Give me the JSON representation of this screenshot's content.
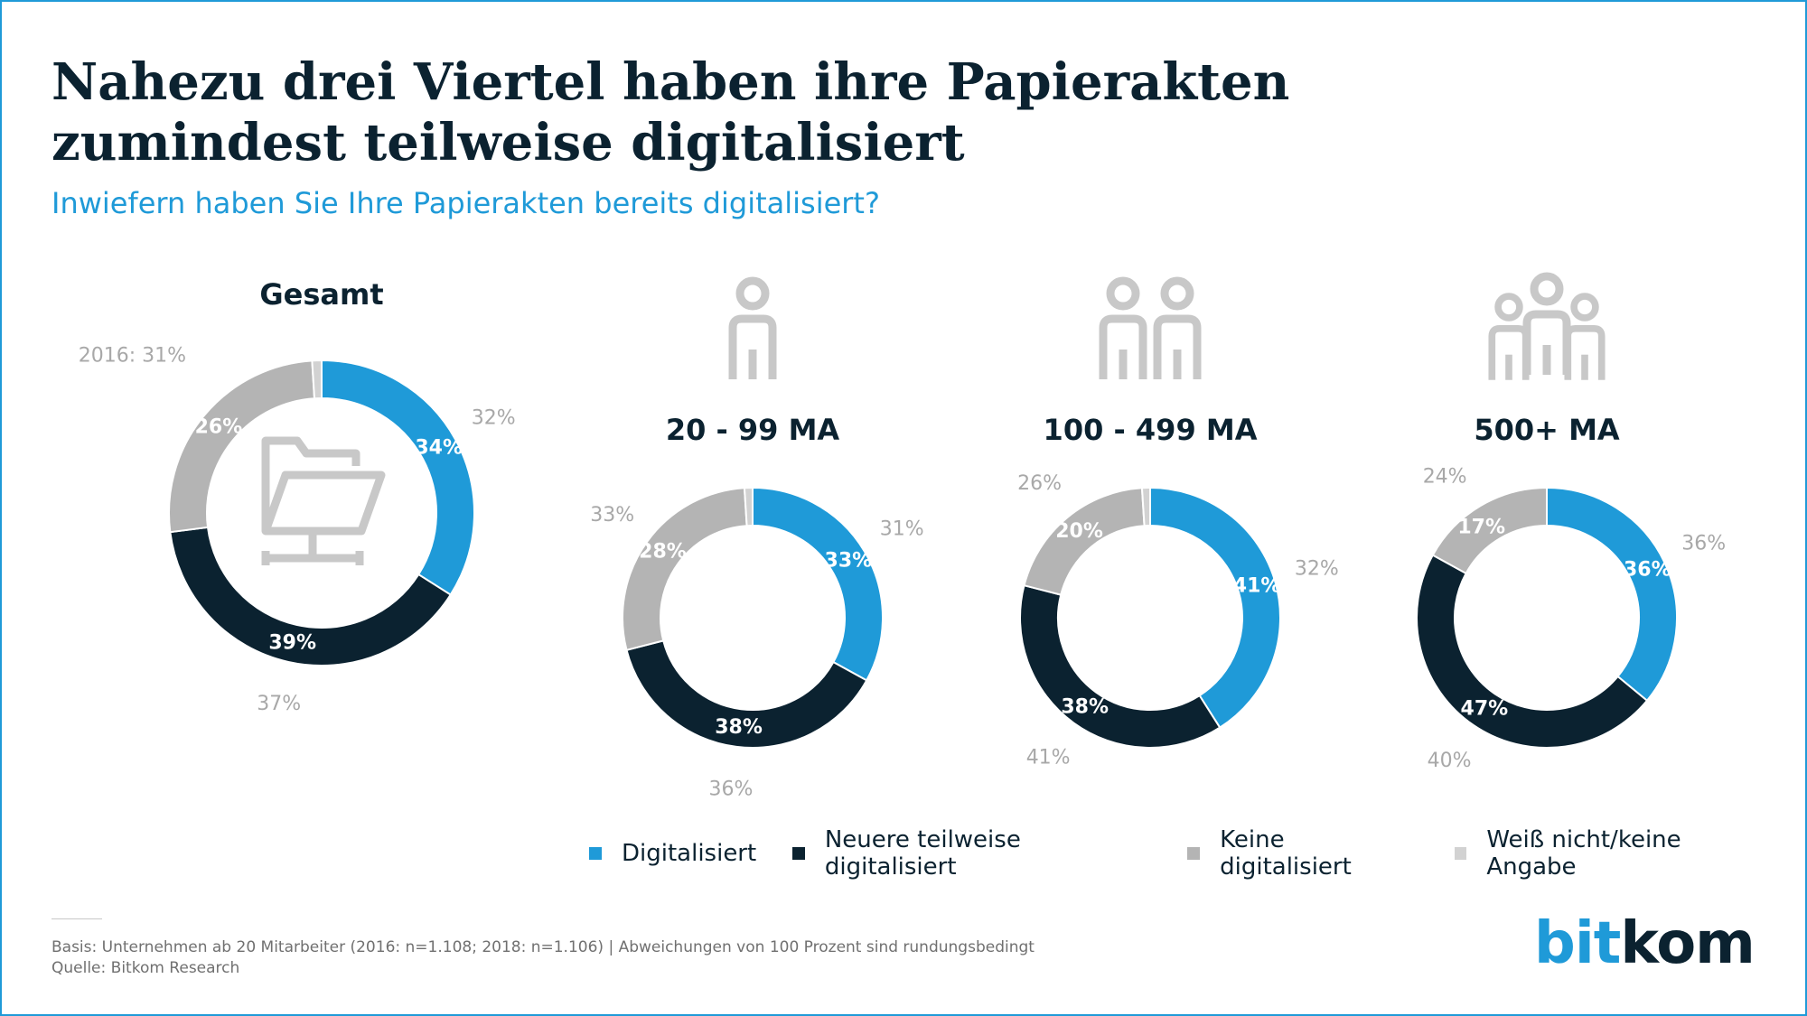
{
  "title": "Nahezu drei Viertel haben ihre Papierakten zumindest teilweise digitalisiert",
  "subtitle": "Inwiefern haben Sie Ihre Papierakten bereits digitalisiert?",
  "colors": {
    "digitalisiert": "#1f9ad8",
    "teilweise": "#0b2230",
    "keine": "#b4b4b4",
    "weiss_nicht": "#d2d2d2",
    "previous_label": "#a8a8a8",
    "icon": "#c8c8c8",
    "accent": "#1f9ad8"
  },
  "chart_data": [
    {
      "type": "donut",
      "title": "Gesamt",
      "icon": "folder-icon",
      "categories": [
        "Digitalisiert",
        "Neuere teilweise digitalisiert",
        "Keine digitalisiert",
        "Weiß nicht/keine Angabe"
      ],
      "values": [
        34,
        39,
        26,
        1
      ],
      "labels": [
        "34%",
        "39%",
        "26%",
        ""
      ],
      "previous_labels": [
        "32%",
        "37%",
        "2016: 31%",
        ""
      ]
    },
    {
      "type": "donut",
      "title": "20 - 99 MA",
      "icon": "single-person-icon",
      "categories": [
        "Digitalisiert",
        "Neuere teilweise digitalisiert",
        "Keine digitalisiert",
        "Weiß nicht/keine Angabe"
      ],
      "values": [
        33,
        38,
        28,
        1
      ],
      "labels": [
        "33%",
        "38%",
        "28%",
        ""
      ],
      "previous_labels": [
        "31%",
        "36%",
        "33%",
        ""
      ]
    },
    {
      "type": "donut",
      "title": "100 - 499 MA",
      "icon": "two-persons-icon",
      "categories": [
        "Digitalisiert",
        "Neuere teilweise digitalisiert",
        "Keine digitalisiert",
        "Weiß nicht/keine Angabe"
      ],
      "values": [
        41,
        38,
        20,
        1
      ],
      "labels": [
        "41%",
        "38%",
        "20%",
        ""
      ],
      "previous_labels": [
        "32%",
        "41%",
        "26%",
        ""
      ]
    },
    {
      "type": "donut",
      "title": "500+ MA",
      "icon": "group-persons-icon",
      "categories": [
        "Digitalisiert",
        "Neuere teilweise digitalisiert",
        "Keine digitalisiert",
        "Weiß nicht/keine Angabe"
      ],
      "values": [
        36,
        47,
        17,
        0
      ],
      "labels": [
        "36%",
        "47%",
        "17%",
        ""
      ],
      "previous_labels": [
        "36%",
        "40%",
        "24%",
        ""
      ]
    }
  ],
  "legend": [
    {
      "label": "Digitalisiert",
      "color": "#1f9ad8"
    },
    {
      "label": "Neuere teilweise digitalisiert",
      "color": "#0b2230"
    },
    {
      "label": "Keine digitalisiert",
      "color": "#b4b4b4"
    },
    {
      "label": "Weiß nicht/keine Angabe",
      "color": "#d2d2d2"
    }
  ],
  "footnote": {
    "basis": "Basis: Unternehmen ab 20 Mitarbeiter (2016: n=1.108; 2018: n=1.106) | Abweichungen von 100 Prozent sind rundungsbedingt",
    "quelle": "Quelle: Bitkom Research"
  },
  "logo": {
    "part1": "bit",
    "part2": "kom"
  }
}
